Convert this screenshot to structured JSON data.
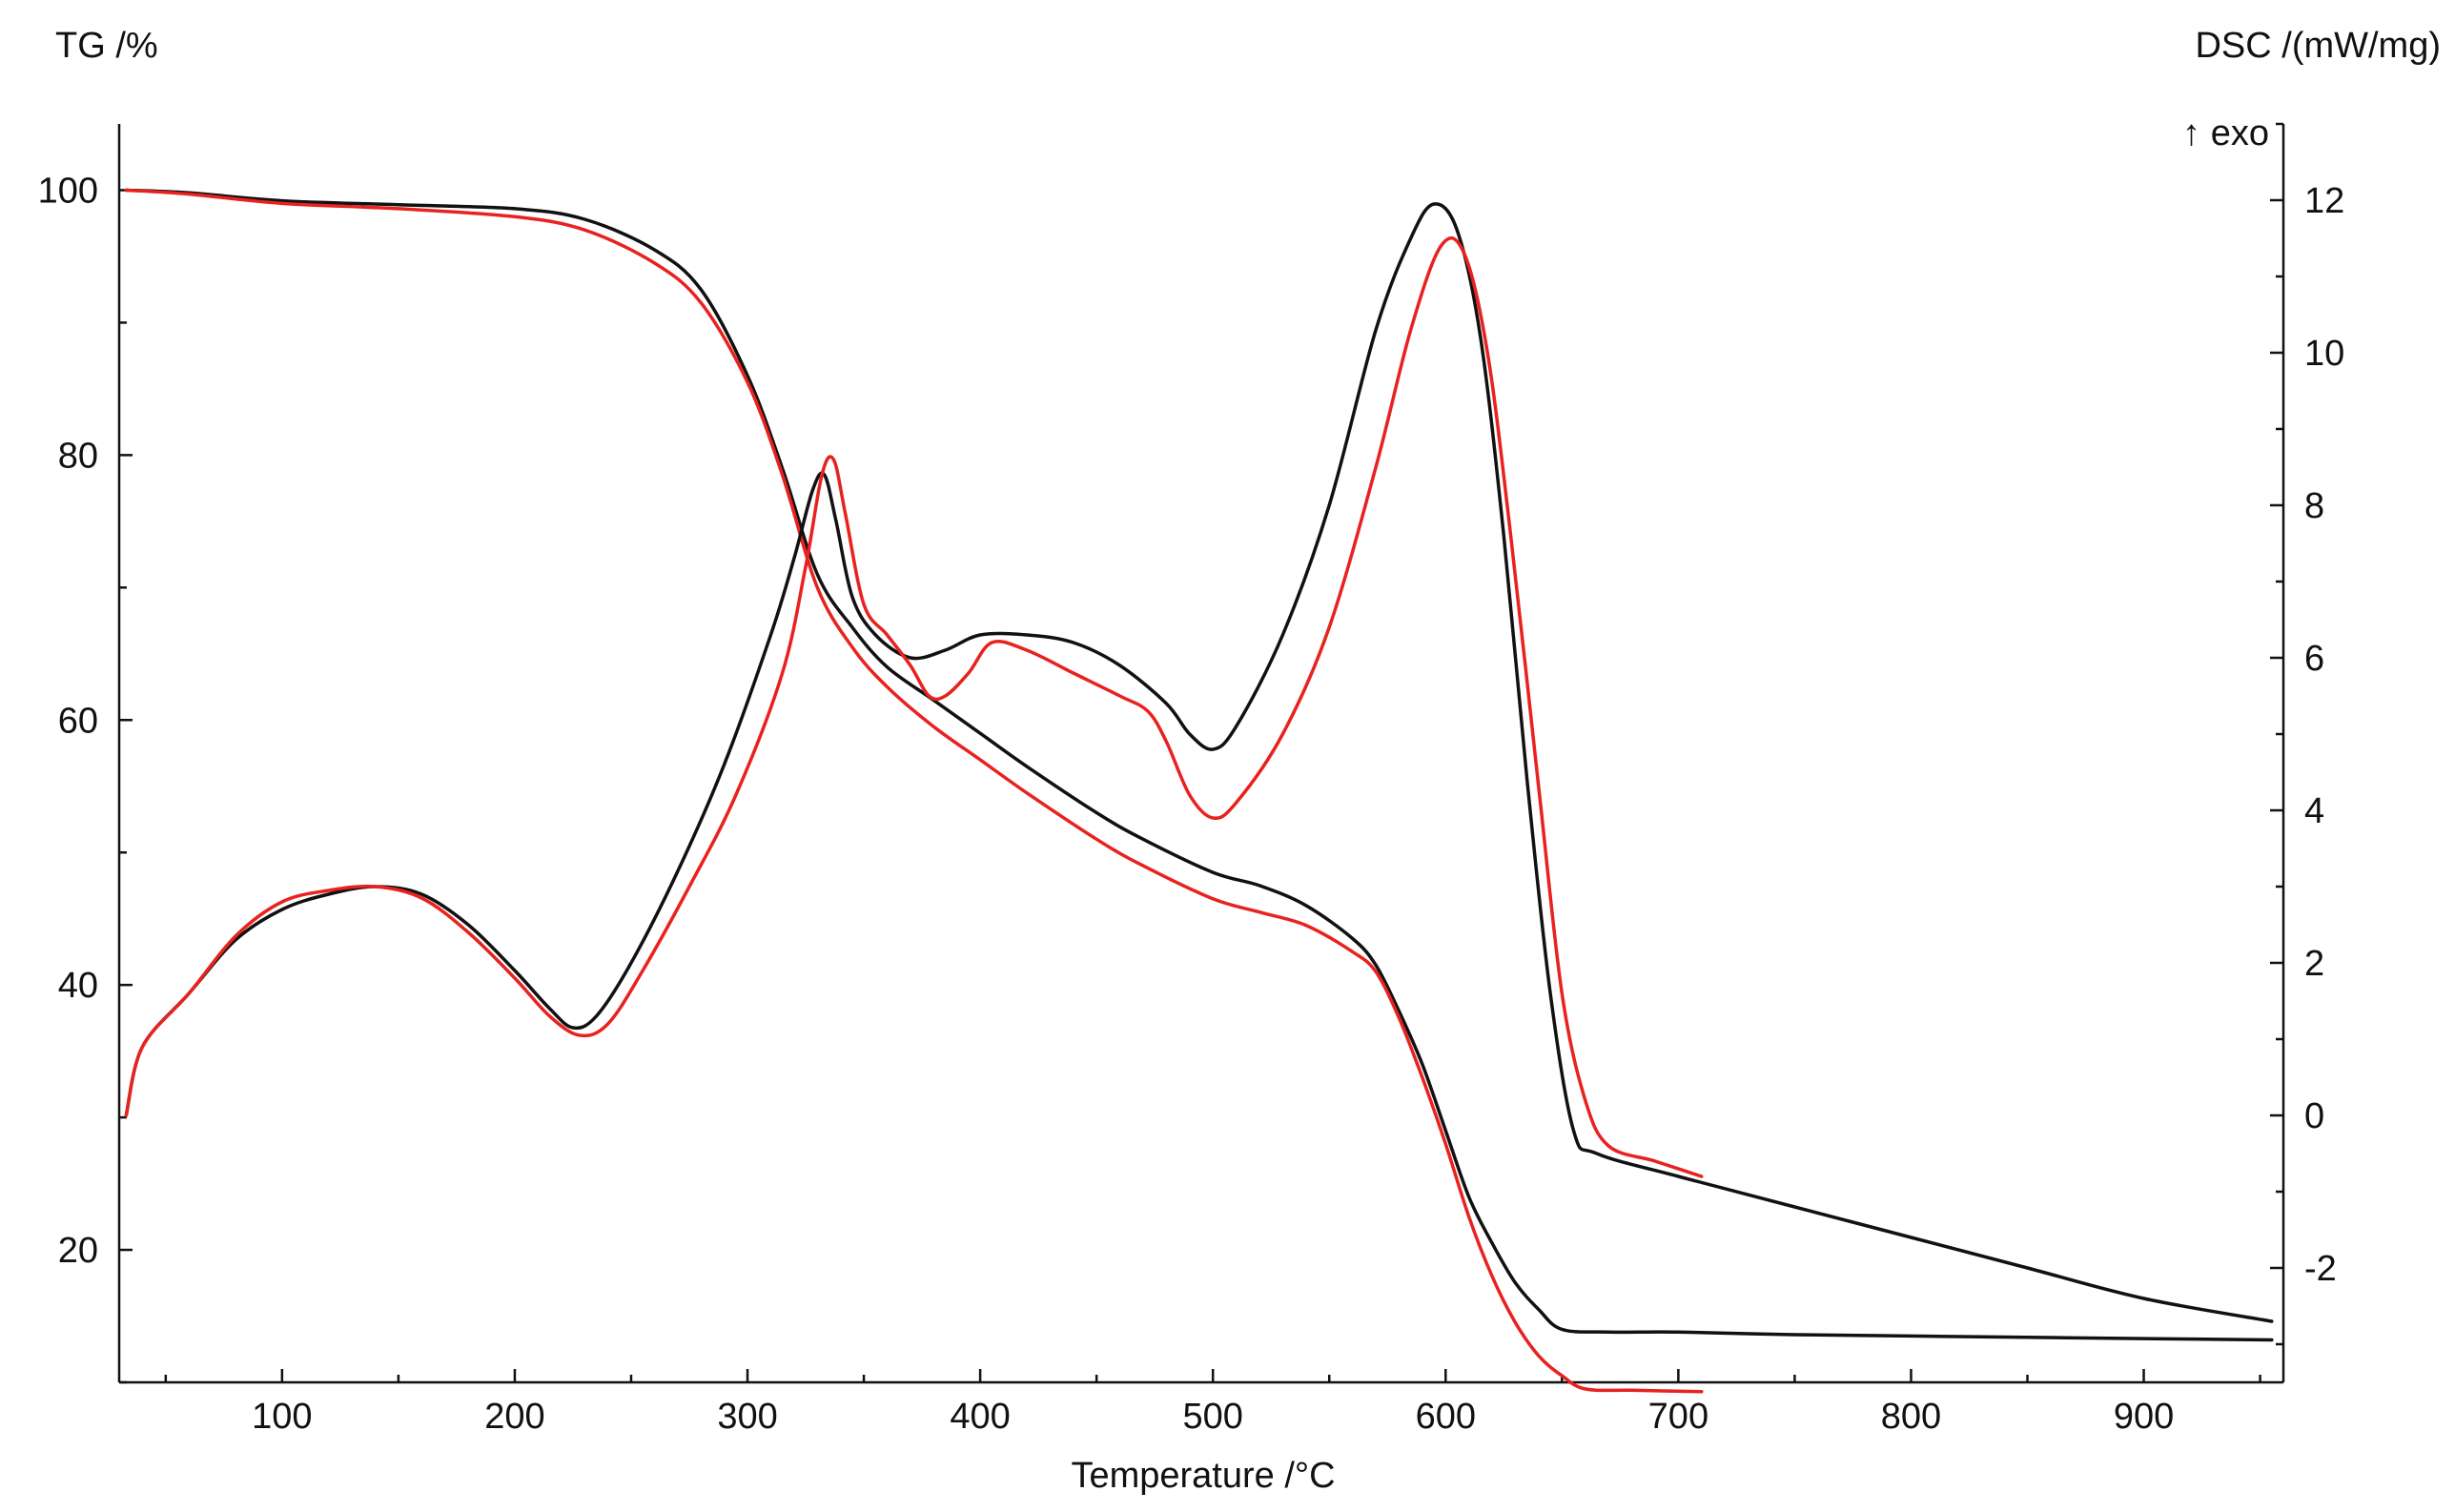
{
  "chart_data": {
    "type": "line",
    "title": "",
    "xlabel": "Temperature /°C",
    "ylabel_left": "TG /%",
    "ylabel_right": "DSC /(mW/mg)",
    "right_annotation": "↑ exo",
    "xlim": [
      30,
      960
    ],
    "ylim_left": [
      10,
      105
    ],
    "ylim_right": [
      -3.5,
      13
    ],
    "x_ticks": [
      100,
      200,
      300,
      400,
      500,
      600,
      700,
      800,
      900
    ],
    "y_ticks_left": [
      20,
      40,
      60,
      80,
      100
    ],
    "y_ticks_right": [
      -2,
      0,
      2,
      4,
      6,
      8,
      10,
      12
    ],
    "grid": false,
    "colors": {
      "black": "#111111",
      "red": "#e8221f"
    },
    "series": [
      {
        "axis": "left",
        "color": "#111111",
        "x": [
          33,
          60,
          100,
          150,
          200,
          230,
          260,
          280,
          300,
          315,
          330,
          345,
          360,
          380,
          400,
          420,
          450,
          470,
          500,
          520,
          540,
          560,
          570,
          580,
          590,
          600,
          610,
          620,
          630,
          640,
          650,
          670,
          700,
          750,
          800,
          850,
          900,
          955
        ],
        "y": [
          100,
          99.8,
          99.2,
          98.9,
          98.6,
          97.8,
          95.5,
          92.5,
          86,
          79,
          71,
          67,
          64,
          61.5,
          59,
          56.5,
          53,
          51,
          48.5,
          47.5,
          46,
          43.5,
          41.5,
          38,
          34,
          29,
          24,
          20.5,
          17.5,
          15.5,
          14,
          13.8,
          13.8,
          13.6,
          13.5,
          13.4,
          13.3,
          13.2
        ]
      },
      {
        "axis": "left",
        "color": "#e8221f",
        "x": [
          33,
          60,
          100,
          150,
          200,
          230,
          260,
          280,
          300,
          315,
          330,
          345,
          360,
          380,
          400,
          420,
          450,
          470,
          500,
          520,
          540,
          560,
          570,
          580,
          590,
          600,
          610,
          620,
          630,
          640,
          650,
          660,
          680,
          710
        ],
        "y": [
          100,
          99.7,
          99,
          98.6,
          98,
          97,
          94.5,
          91.5,
          85.5,
          78.5,
          70,
          65.5,
          62.5,
          59.5,
          57,
          54.5,
          51,
          49,
          46.5,
          45.5,
          44.5,
          42.5,
          41,
          37.5,
          33,
          28,
          22.5,
          18,
          14.5,
          12,
          10.5,
          9.5,
          9.4,
          9.3
        ]
      },
      {
        "axis": "right",
        "color": "#111111",
        "x": [
          33,
          40,
          60,
          80,
          100,
          120,
          140,
          160,
          180,
          200,
          215,
          225,
          235,
          250,
          270,
          290,
          310,
          320,
          328,
          333,
          338,
          345,
          355,
          370,
          385,
          400,
          420,
          440,
          460,
          480,
          490,
          500,
          510,
          530,
          550,
          570,
          585,
          595,
          605,
          615,
          625,
          635,
          645,
          655,
          665,
          700,
          750,
          800,
          850,
          900,
          955
        ],
        "y": [
          0,
          0.9,
          1.6,
          2.3,
          2.7,
          2.9,
          3.0,
          2.9,
          2.5,
          1.9,
          1.4,
          1.15,
          1.3,
          2.0,
          3.2,
          4.6,
          6.3,
          7.3,
          8.2,
          8.4,
          7.8,
          6.8,
          6.3,
          6.0,
          6.1,
          6.3,
          6.3,
          6.2,
          5.9,
          5.4,
          5.0,
          4.8,
          5.1,
          6.3,
          8.0,
          10.3,
          11.5,
          11.95,
          11.6,
          10.2,
          7.6,
          4.4,
          1.6,
          -0.2,
          -0.5,
          -0.8,
          -1.2,
          -1.6,
          -2.0,
          -2.4,
          -2.7
        ]
      },
      {
        "axis": "right",
        "color": "#e8221f",
        "x": [
          33,
          40,
          60,
          80,
          100,
          120,
          140,
          160,
          180,
          200,
          215,
          228,
          240,
          255,
          275,
          295,
          315,
          325,
          332,
          337,
          342,
          350,
          360,
          370,
          378,
          385,
          395,
          405,
          420,
          440,
          460,
          472,
          480,
          490,
          500,
          510,
          530,
          550,
          570,
          585,
          598,
          608,
          618,
          628,
          640,
          650,
          660,
          670,
          690,
          710
        ],
        "y": [
          0,
          0.9,
          1.6,
          2.35,
          2.8,
          2.95,
          3.0,
          2.85,
          2.4,
          1.8,
          1.3,
          1.05,
          1.2,
          1.9,
          3.0,
          4.2,
          5.8,
          7.2,
          8.4,
          8.6,
          7.9,
          6.7,
          6.3,
          5.9,
          5.5,
          5.5,
          5.8,
          6.2,
          6.1,
          5.8,
          5.5,
          5.3,
          4.9,
          4.2,
          3.9,
          4.1,
          5.0,
          6.4,
          8.5,
          10.3,
          11.4,
          11.3,
          10.0,
          7.6,
          4.3,
          1.6,
          0.2,
          -0.4,
          -0.6,
          -0.8
        ]
      }
    ]
  }
}
